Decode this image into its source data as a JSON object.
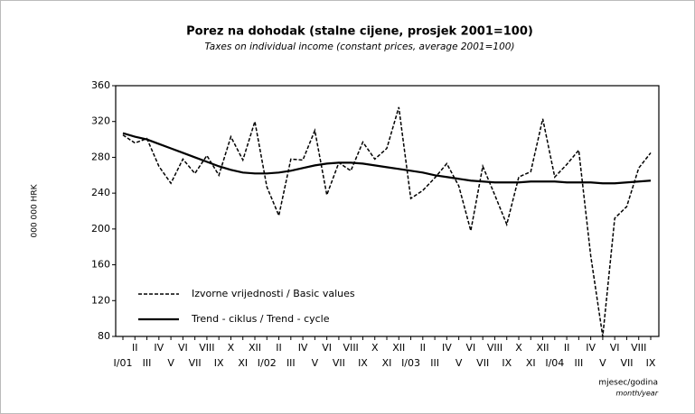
{
  "chart_data": {
    "type": "line",
    "title": "Porez na dohodak (stalne cijene, prosjek 2001=100)",
    "subtitle": "Taxes on individual income (constant prices, average 2001=100)",
    "y_label": "000 000 HRK",
    "x_label": "mjesec/godina",
    "x_label_en": "month/year",
    "categories": [
      "I/01",
      "II",
      "III",
      "IV",
      "V",
      "VI",
      "VII",
      "VIII",
      "IX",
      "X",
      "XI",
      "XII",
      "I/02",
      "II",
      "III",
      "IV",
      "V",
      "VI",
      "VII",
      "VIII",
      "IX",
      "X",
      "XI",
      "XII",
      "I/03",
      "II",
      "III",
      "IV",
      "V",
      "VI",
      "VII",
      "VIII",
      "IX",
      "X",
      "XI",
      "XII",
      "I/04",
      "II",
      "III",
      "IV",
      "V",
      "VI",
      "VII",
      "VIII",
      "IX"
    ],
    "series": [
      {
        "name": "Izvorne vrijednosti / Basic values",
        "color": "#000000",
        "style": "dashed",
        "values": [
          305,
          296,
          301,
          270,
          251,
          278,
          262,
          282,
          260,
          303,
          277,
          320,
          247,
          215,
          278,
          277,
          310,
          238,
          274,
          265,
          297,
          278,
          290,
          336,
          234,
          243,
          257,
          273,
          248,
          198,
          270,
          238,
          205,
          258,
          264,
          323,
          258,
          272,
          288,
          170,
          80,
          212,
          225,
          268,
          285
        ]
      },
      {
        "name": "Trend - ciklus / Trend - cycle",
        "color": "#000000",
        "style": "solid",
        "values": [
          307,
          303,
          300,
          295,
          290,
          285,
          280,
          275,
          270,
          266,
          263,
          262,
          262,
          263,
          265,
          268,
          271,
          273,
          274,
          274,
          273,
          271,
          269,
          267,
          265,
          263,
          260,
          258,
          256,
          254,
          253,
          252,
          252,
          252,
          253,
          253,
          253,
          252,
          252,
          252,
          251,
          251,
          252,
          253,
          254
        ]
      }
    ],
    "ylim": [
      80,
      360
    ],
    "yticks": [
      80,
      120,
      160,
      200,
      240,
      280,
      320,
      360
    ],
    "legend": "lower-left",
    "grid": false
  }
}
